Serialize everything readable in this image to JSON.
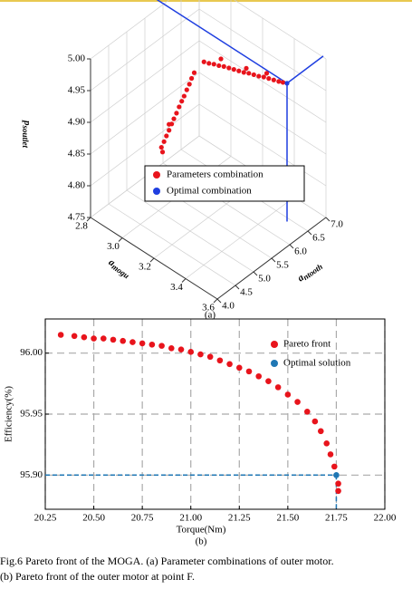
{
  "chart_data": [
    {
      "type": "scatter3d",
      "xlabel": {
        "main": "a",
        "sub": "mogu"
      },
      "ylabel": {
        "main": "a",
        "sub": "ntooth"
      },
      "zlabel": {
        "main": "p",
        "sub": "soutlet"
      },
      "panel": "(a)",
      "xlim": [
        2.8,
        3.6
      ],
      "xticks": [
        2.8,
        {
          "value": 3.0,
          "label": "3.0"
        },
        3.2,
        3.4,
        3.6
      ],
      "ylim": [
        4.0,
        7.0
      ],
      "yticks": [
        {
          "value": 4.0,
          "label": "4.0"
        },
        4.5,
        {
          "value": 5.0,
          "label": "5.0"
        },
        5.5,
        {
          "value": 6.0,
          "label": "6.0"
        },
        6.5,
        {
          "value": 7.0,
          "label": "7.0"
        }
      ],
      "zlim": [
        4.75,
        5.0
      ],
      "zticks": [
        4.75,
        {
          "value": 4.8,
          "label": "4.80"
        },
        4.85,
        {
          "value": 4.9,
          "label": "4.90"
        },
        4.95,
        {
          "value": 5.0,
          "label": "5.00"
        }
      ],
      "grid": true,
      "series": [
        {
          "name": "Parameters combination",
          "color": "#e8141c",
          "x": [
            3.15,
            3.165,
            3.18,
            3.195,
            3.21,
            3.225,
            3.24,
            3.255,
            3.27,
            3.285,
            3.3,
            3.315,
            3.33,
            3.345,
            3.36,
            3.375,
            3.388,
            3.2,
            3.28,
            3.34,
            2.95,
            2.962,
            2.973,
            2.985,
            2.997,
            3.007,
            3.019,
            3.031,
            3.043,
            3.054,
            3.066,
            3.078,
            3.088,
            3.1,
            2.955,
            2.975
          ],
          "y": [
            5.6,
            5.672,
            5.744,
            5.816,
            5.888,
            5.96,
            6.032,
            6.104,
            6.176,
            6.248,
            6.32,
            6.392,
            6.464,
            6.536,
            6.608,
            6.68,
            6.74,
            5.85,
            6.2,
            6.5,
            5.3,
            5.32,
            5.338,
            5.358,
            5.378,
            5.395,
            5.415,
            5.435,
            5.455,
            5.473,
            5.493,
            5.513,
            5.53,
            5.55,
            5.31,
            5.4
          ],
          "z": [
            4.983,
            4.98,
            4.978,
            4.975,
            4.973,
            4.97,
            4.967,
            4.964,
            4.961,
            4.959,
            4.956,
            4.953,
            4.951,
            4.948,
            4.945,
            4.942,
            4.94,
            4.985,
            4.968,
            4.957,
            4.829,
            4.839,
            4.849,
            4.859,
            4.87,
            4.879,
            4.889,
            4.9,
            4.91,
            4.919,
            4.93,
            4.94,
            4.95,
            4.96,
            4.822,
            4.865
          ]
        },
        {
          "name": "Optimal combination",
          "color": "#1f3fe0",
          "x": [
            3.4
          ],
          "y": [
            6.8
          ],
          "z": [
            4.938
          ]
        }
      ]
    },
    {
      "type": "scatter",
      "xlabel": "Torque(Nm)",
      "ylabel": "Efficiency(%)",
      "panel": "(b)",
      "xlim": [
        20.25,
        22.0
      ],
      "xticks": [
        {
          "value": 20.25,
          "label": "20.25"
        },
        {
          "value": 20.5,
          "label": "20.50"
        },
        {
          "value": 20.75,
          "label": "20.75"
        },
        {
          "value": 21.0,
          "label": "21.00"
        },
        {
          "value": 21.25,
          "label": "21.25"
        },
        {
          "value": 21.5,
          "label": "21.50"
        },
        {
          "value": 21.75,
          "label": "21.75"
        },
        {
          "value": 22.0,
          "label": "22.00"
        }
      ],
      "ylim": [
        95.872,
        96.028
      ],
      "yticks": [
        {
          "value": 95.9,
          "label": "95.90"
        },
        {
          "value": 95.95,
          "label": "95.95"
        },
        {
          "value": 96.0,
          "label": "96.00"
        }
      ],
      "grid": true,
      "legend": "upper right",
      "series": [
        {
          "name": "Pareto front",
          "color": "#e8141c",
          "x": [
            20.33,
            20.4,
            20.45,
            20.5,
            20.55,
            20.6,
            20.65,
            20.7,
            20.75,
            20.8,
            20.85,
            20.9,
            20.95,
            21.0,
            21.05,
            21.1,
            21.15,
            21.2,
            21.25,
            21.3,
            21.35,
            21.4,
            21.45,
            21.5,
            21.55,
            21.6,
            21.64,
            21.67,
            21.7,
            21.72,
            21.74,
            21.76,
            21.76
          ],
          "values": [
            96.015,
            96.014,
            96.013,
            96.012,
            96.012,
            96.011,
            96.01,
            96.009,
            96.008,
            96.007,
            96.006,
            96.004,
            96.003,
            96.001,
            95.999,
            95.997,
            95.994,
            95.991,
            95.988,
            95.985,
            95.981,
            95.977,
            95.972,
            95.966,
            95.96,
            95.952,
            95.944,
            95.936,
            95.926,
            95.917,
            95.907,
            95.893,
            95.887
          ]
        },
        {
          "name": "Optimal solution",
          "color": "#1f77b4",
          "x": [
            21.75
          ],
          "values": [
            95.9
          ]
        }
      ]
    }
  ],
  "caption": [
    "Fig.6 Pareto front of the MOGA. (a) Parameter combinations of outer motor.",
    "(b) Pareto front of the outer motor at point F."
  ]
}
